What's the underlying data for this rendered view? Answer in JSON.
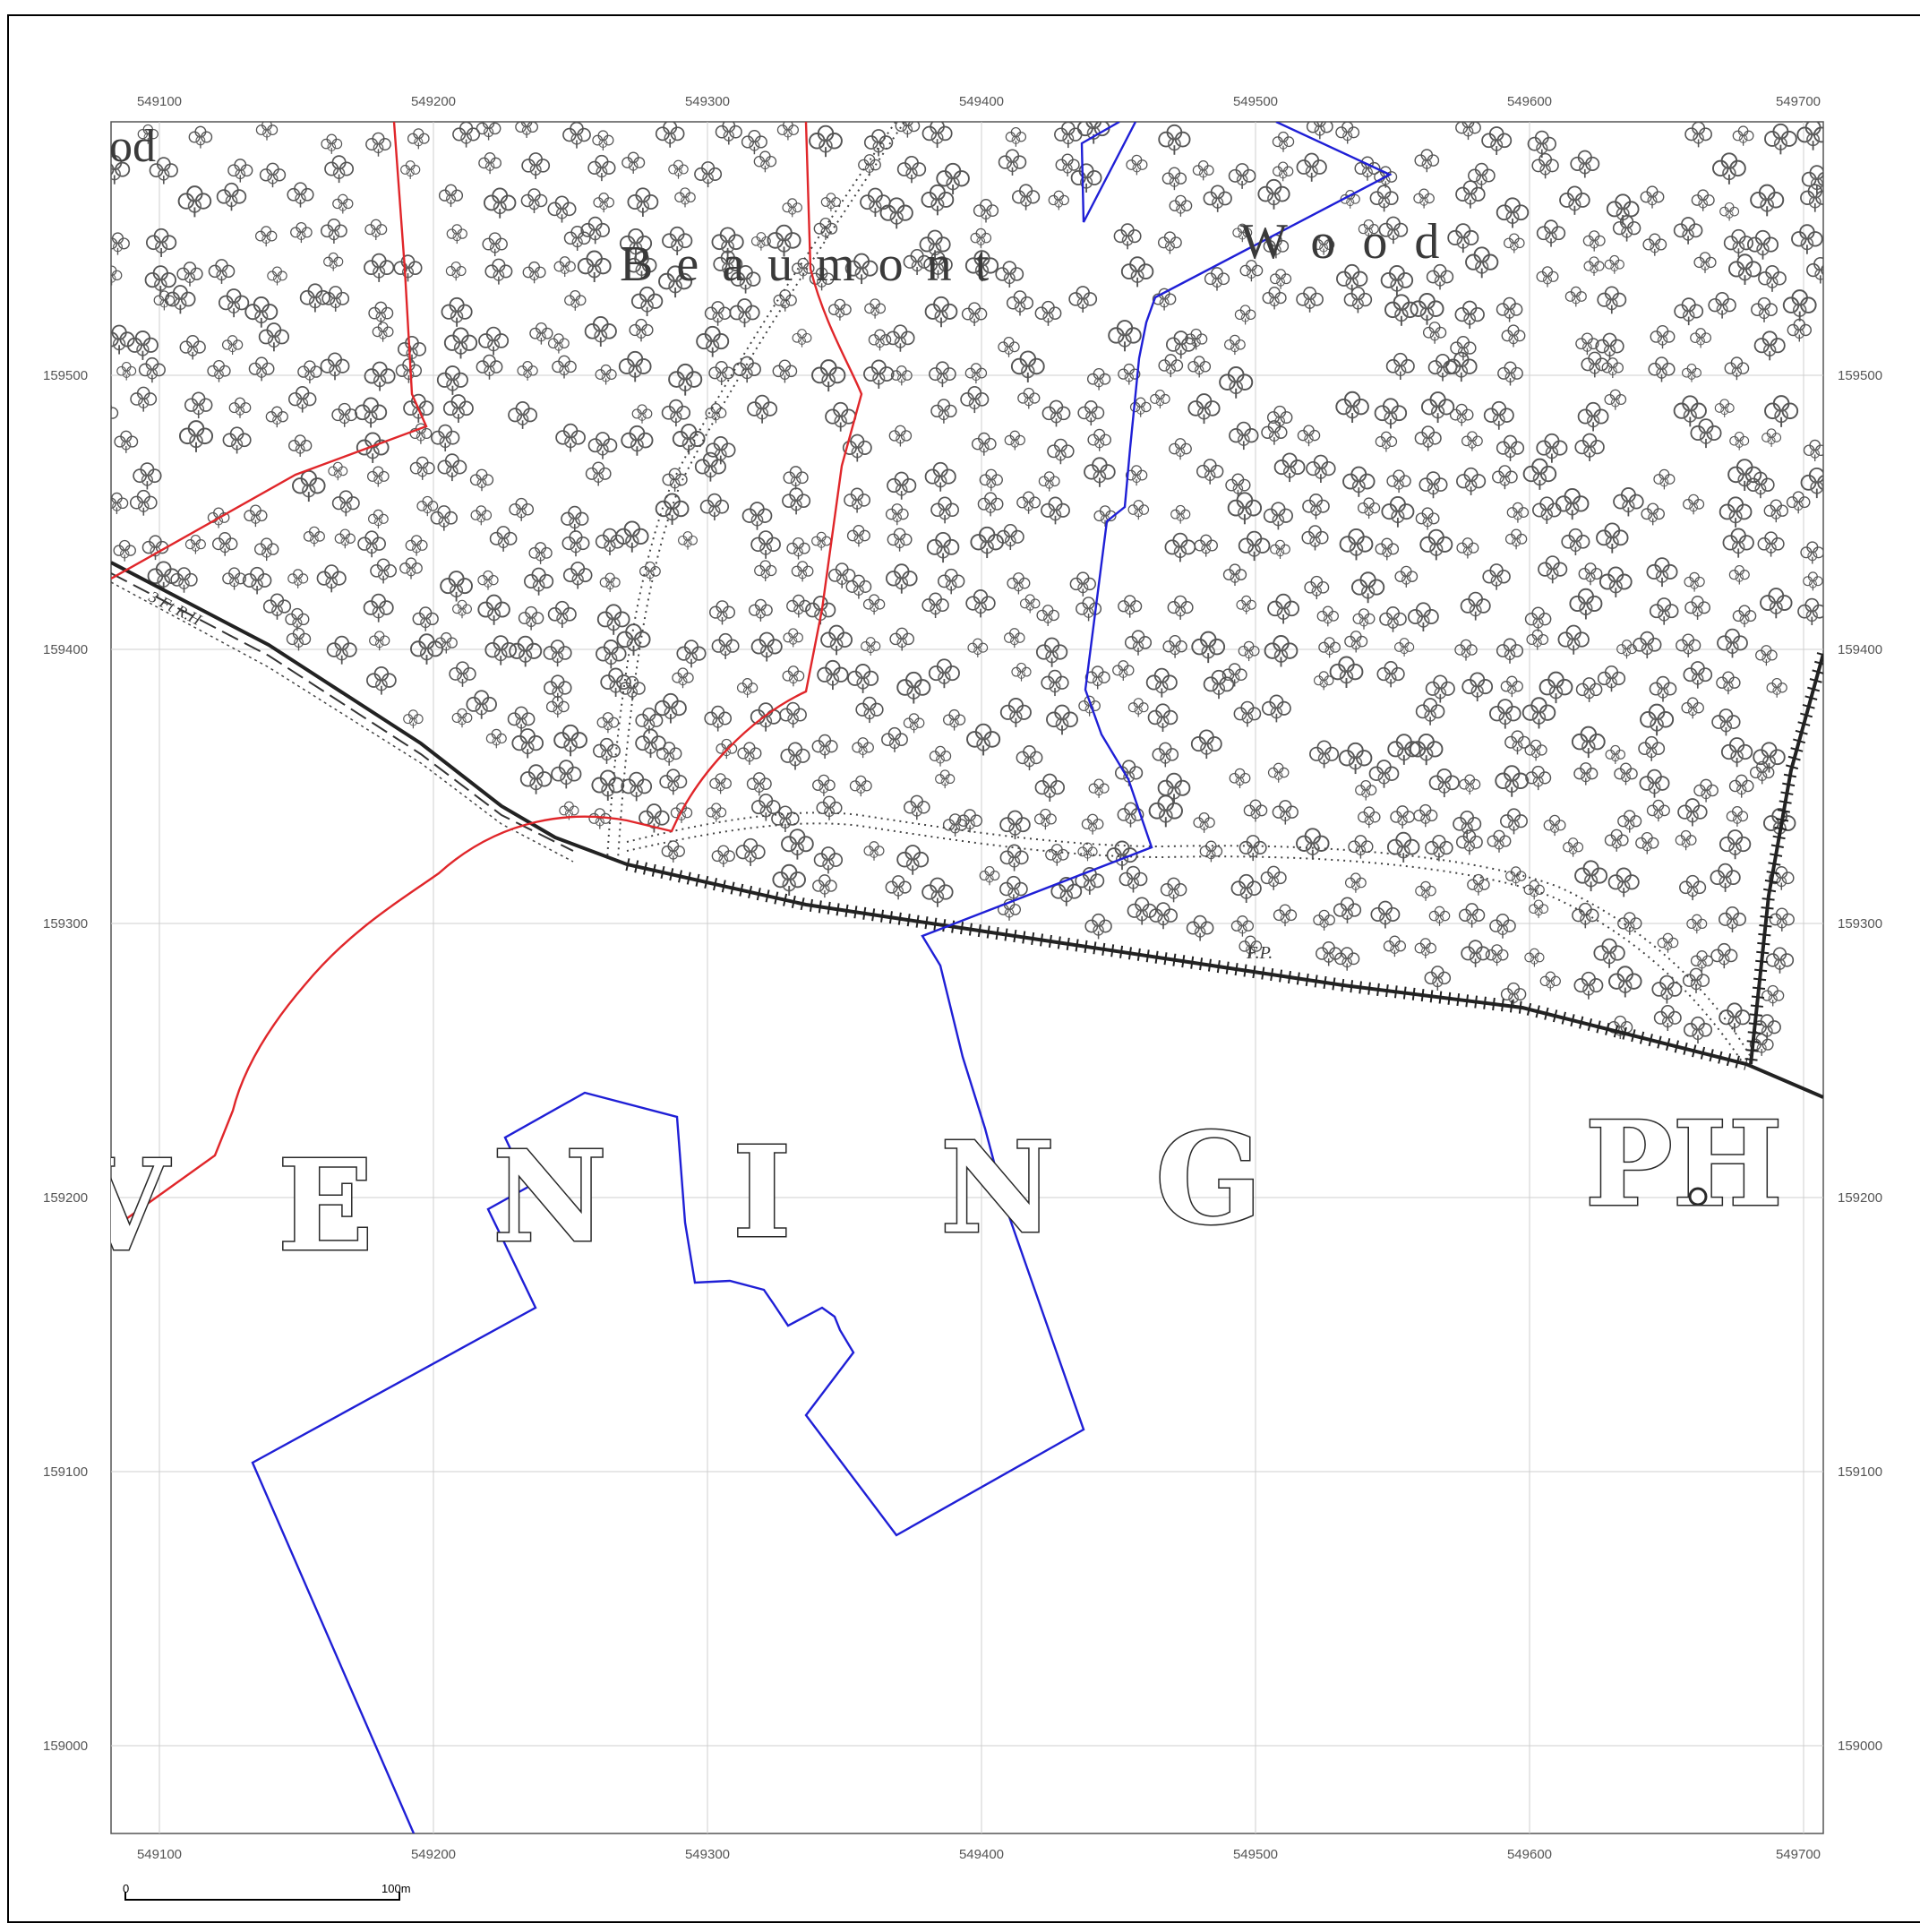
{
  "map": {
    "x_ticks": [
      "549100",
      "549200",
      "549300",
      "549400",
      "549500",
      "549600",
      "549700"
    ],
    "y_ticks": [
      "159500",
      "159400",
      "159300",
      "159200",
      "159100",
      "159000"
    ],
    "labels": {
      "beaumont": "Beaumont",
      "wood": "Wood",
      "partial_wood": "od",
      "vening": [
        "V",
        "E",
        "N",
        "I",
        "N",
        "G"
      ],
      "ph": "PH",
      "railway": "3 Ft R.H",
      "track_label": "F.P."
    },
    "scale_bar": {
      "start": "0",
      "end": "100m"
    },
    "colors": {
      "red_boundary": "#e0262a",
      "blue_boundary": "#1f1fd6",
      "grid": "#c8c8c8",
      "frame": "#000000",
      "railway": "#222222"
    },
    "icons": [
      "tree-symbol-icon",
      "railway-track-icon"
    ]
  }
}
